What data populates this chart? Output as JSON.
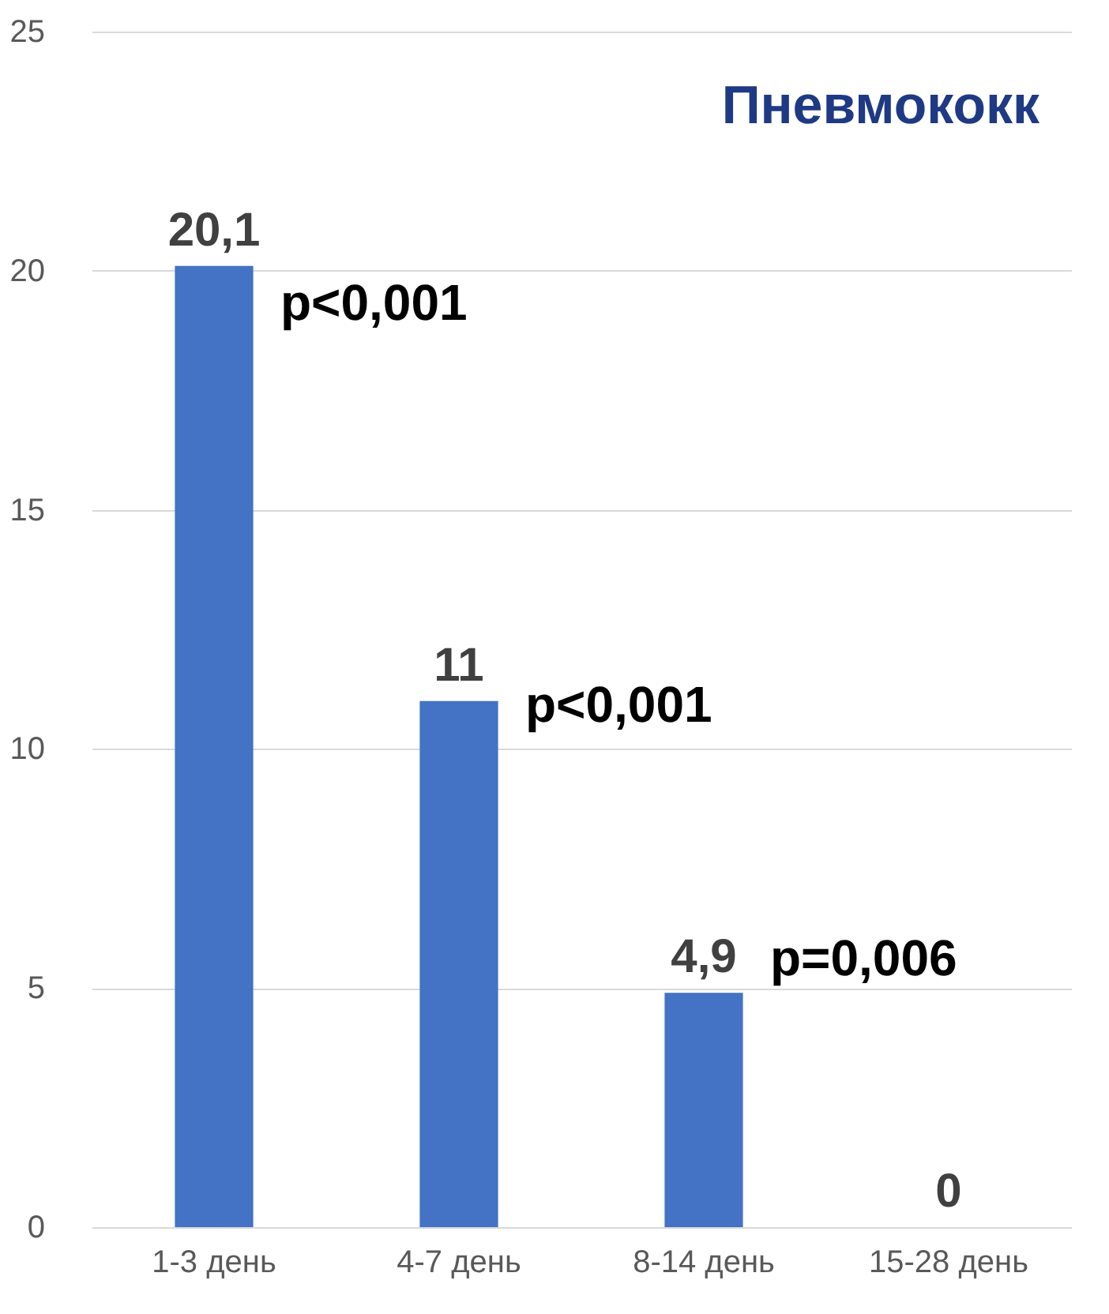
{
  "chart_data": {
    "type": "bar",
    "title": "Пневмококк",
    "categories": [
      "1-3 день",
      "4-7 день",
      "8-14 день",
      "15-28 день"
    ],
    "values": [
      20.1,
      11,
      4.9,
      0
    ],
    "color": "#4472c4",
    "value_labels": [
      "20,1",
      "11",
      "4,9",
      "0"
    ],
    "ylim": [
      0,
      25
    ],
    "yticks": [
      0,
      5,
      10,
      15,
      20,
      25
    ],
    "grid": "y",
    "annotations": [
      "p<0,001",
      "p<0,001",
      "p=0,006"
    ]
  }
}
